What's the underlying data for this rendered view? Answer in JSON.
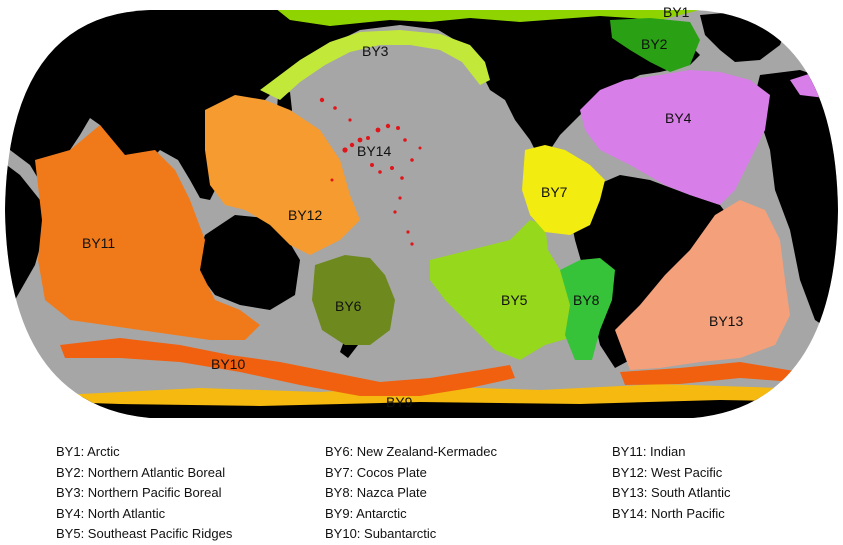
{
  "map": {
    "colors": {
      "land": "#000000",
      "ocean": "#a6a6a6",
      "BY1": "#8fd400",
      "BY2": "#2aa114",
      "BY3": "#c2e83a",
      "BY4": "#d87ee8",
      "BY5": "#96d81c",
      "BY6": "#6e8a1f",
      "BY7": "#f2ec10",
      "BY8": "#36c33a",
      "BY9": "#f5b90f",
      "BY10": "#f0600f",
      "BY11": "#f07a1a",
      "BY12": "#f59b2f",
      "BY13": "#f4a07a",
      "BY14": "#e0151a"
    },
    "labels": {
      "by1": "BY1",
      "by2": "BY2",
      "by3": "BY3",
      "by4": "BY4",
      "by5": "BY5",
      "by6": "BY6",
      "by7": "BY7",
      "by8": "BY8",
      "by9": "BY9",
      "by10": "BY10",
      "by11": "BY11",
      "by12": "BY12",
      "by13": "BY13",
      "by14": "BY14"
    }
  },
  "legend": {
    "col1": [
      "BY1: Arctic",
      "BY2: Northern Atlantic Boreal",
      "BY3: Northern Pacific Boreal",
      "BY4: North Atlantic",
      "BY5: Southeast Pacific Ridges"
    ],
    "col2": [
      "BY6: New Zealand-Kermadec",
      "BY7: Cocos Plate",
      "BY8: Nazca Plate",
      "BY9: Antarctic",
      "BY10: Subantarctic"
    ],
    "col3": [
      "BY11: Indian",
      "BY12: West Pacific",
      "BY13: South Atlantic",
      "BY14: North Pacific"
    ]
  }
}
